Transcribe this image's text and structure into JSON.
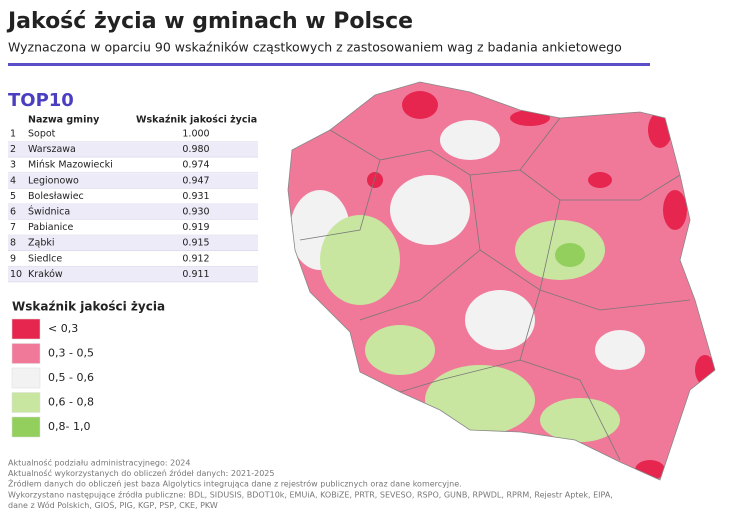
{
  "header": {
    "title": "Jakość życia w gminach w Polsce",
    "subtitle": "Wyznaczona w oparciu 90 wskaźników cząstkowych z zastosowaniem wag z badania ankietowego"
  },
  "top10": {
    "title": "TOP10",
    "columns": [
      "Nazwa gminy",
      "Wskaźnik jakości życia"
    ],
    "rows": [
      [
        "1",
        "Sopot",
        "1.000"
      ],
      [
        "2",
        "Warszawa",
        "0.980"
      ],
      [
        "3",
        "Mińsk Mazowiecki",
        "0.974"
      ],
      [
        "4",
        "Legionowo",
        "0.947"
      ],
      [
        "5",
        "Bolesławiec",
        "0.931"
      ],
      [
        "6",
        "Świdnica",
        "0.930"
      ],
      [
        "7",
        "Pabianice",
        "0.919"
      ],
      [
        "8",
        "Ząbki",
        "0.915"
      ],
      [
        "9",
        "Siedlce",
        "0.912"
      ],
      [
        "10",
        "Kraków",
        "0.911"
      ]
    ]
  },
  "legend": {
    "title": "Wskaźnik jakości życia",
    "items": [
      {
        "label": "< 0,3",
        "color": "#e6264f"
      },
      {
        "label": "0,3 - 0,5",
        "color": "#f0799a"
      },
      {
        "label": "0,5 - 0,6",
        "color": "#f2f2f2"
      },
      {
        "label": "0,6 - 0,8",
        "color": "#c8e6a0"
      },
      {
        "label": "0,8- 1,0",
        "color": "#92cf5c"
      }
    ]
  },
  "footnotes": [
    "Aktualność podziału administracyjnego: 2024",
    "Aktualność wykorzystanych do obliczeń źródeł danych: 2021-2025",
    "Źródłem danych do obliczeń jest baza Algolytics integrująca dane z rejestrów publicznych oraz dane komercyjne.",
    "Wykorzystano następujące źródła publiczne: BDL, SIDUSIS, BDOT10k, EMUiA, KOBiZE, PRTR, SEVESO, RSPO, GUNB, RPWDL, RPRM, Rejestr Aptek, EIPA,",
    "dane z Wód Polskich, GIOŚ, PIG, KGP, PSP, CKE, PKW"
  ]
}
